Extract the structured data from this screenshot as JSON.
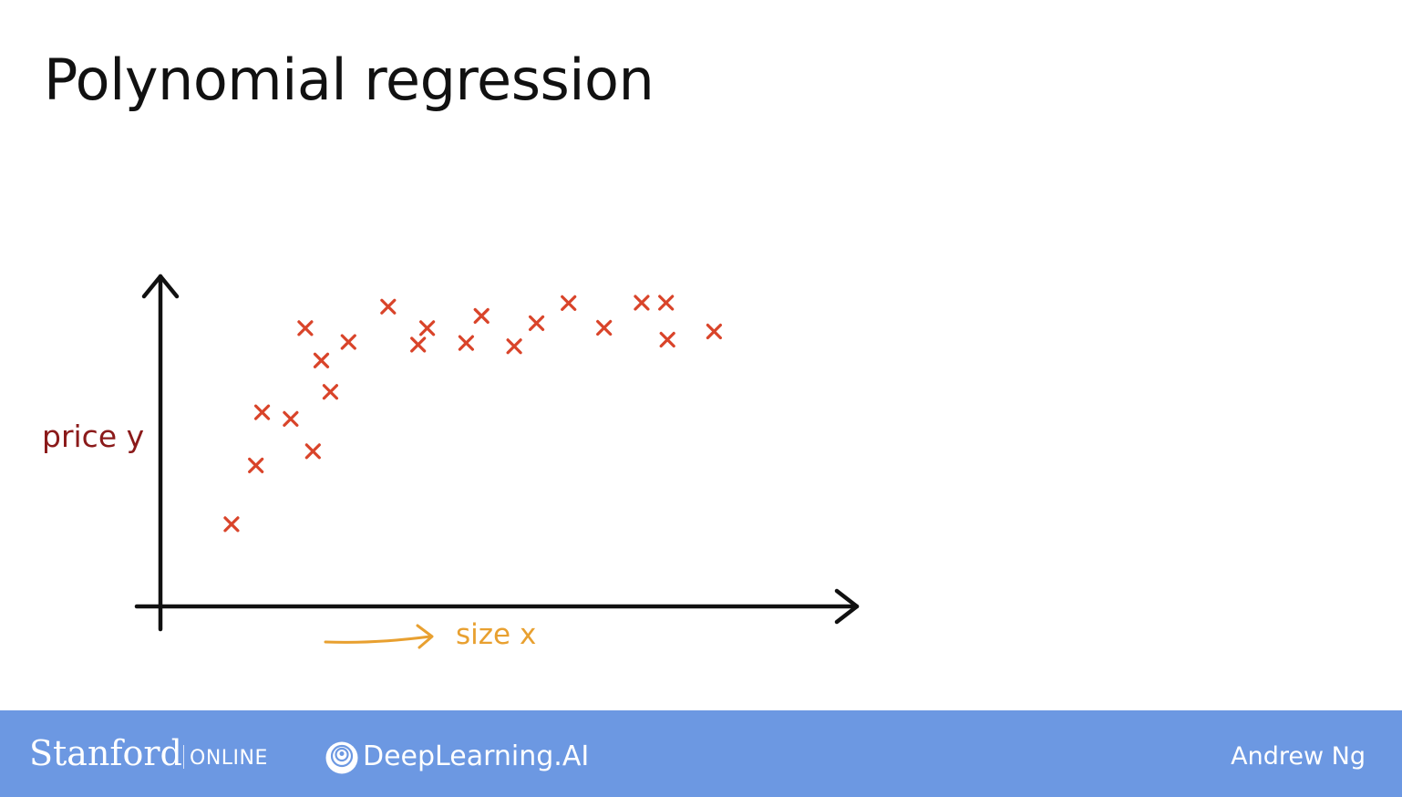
{
  "slide": {
    "title": "Polynomial regression"
  },
  "chart_data": {
    "type": "scatter",
    "title": "",
    "xlabel": "size x",
    "ylabel": "price y",
    "xlim": [
      0,
      100
    ],
    "ylim": [
      0,
      100
    ],
    "grid": false,
    "legend": "none",
    "marker": "cross",
    "series": [
      {
        "x": [
          10.2,
          13.7,
          14.6,
          18.7,
          20.8,
          21.9,
          23.1,
          24.4,
          27.0,
          32.7,
          37.0,
          38.3,
          43.9,
          46.1,
          50.8,
          54.0,
          58.6,
          63.7,
          69.1,
          72.6,
          72.8,
          79.5
        ],
        "y": [
          24.9,
          42.7,
          58.8,
          56.8,
          84.3,
          47.0,
          74.5,
          65.0,
          80.1,
          90.8,
          79.3,
          84.3,
          79.8,
          88.0,
          78.8,
          85.8,
          91.9,
          84.4,
          92.0,
          92.0,
          80.8,
          83.3
        ]
      }
    ],
    "colors": {
      "points": "#d9442a",
      "axes": "#111111",
      "ylabel": "#8b1a1a",
      "xlabel": "#e8a030",
      "arrow": "#e8a030"
    }
  },
  "footer": {
    "stanford": "Stanford",
    "online": "ONLINE",
    "deeplearning": "DeepLearning.AI",
    "author": "Andrew Ng",
    "background": "#6c98e2"
  }
}
